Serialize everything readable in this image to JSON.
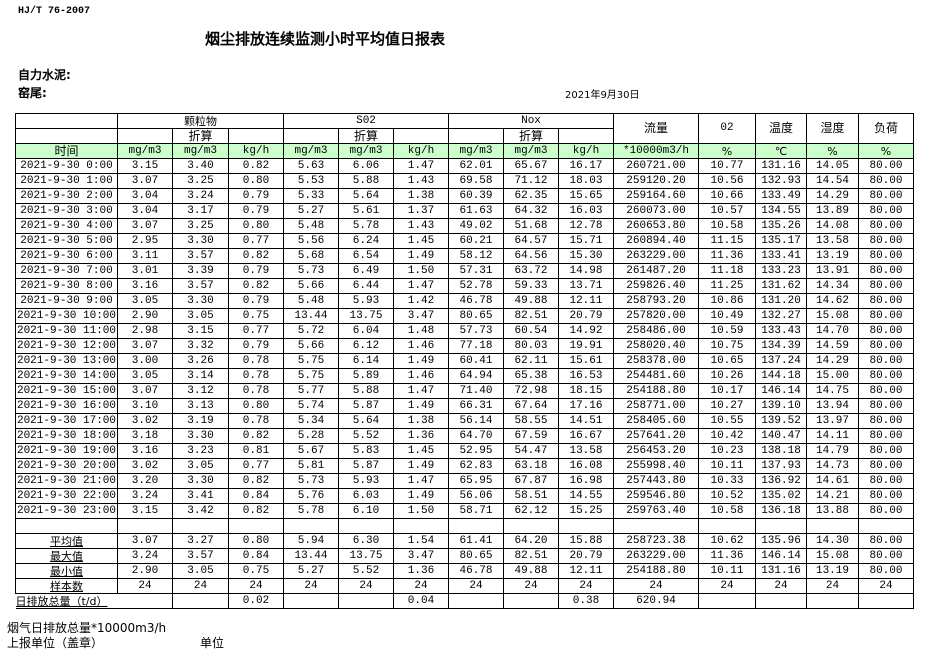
{
  "header": {
    "standard": "HJ/T  76-2007",
    "title": "烟尘排放连续监测小时平均值日报表",
    "company": "自力水泥:",
    "kiln": "窑尾:",
    "date": "2021年9月30日"
  },
  "table": {
    "groups": {
      "particles": "颗粒物",
      "so2": "S02",
      "nox": "Nox",
      "flow": "流量",
      "o2": "02",
      "temp": "温度",
      "humidity": "湿度",
      "load": "负荷"
    },
    "converted": "折算",
    "time_header": "时间",
    "units": [
      "mg/m3",
      "mg/m3",
      "kg/h",
      "mg/m3",
      "mg/m3",
      "kg/h",
      "mg/m3",
      "mg/m3",
      "kg/h",
      "*10000m3/h",
      "%",
      "℃",
      "%",
      "%"
    ],
    "rows": [
      [
        "2021-9-30 0:00",
        "3.15",
        "3.40",
        "0.82",
        "5.63",
        "6.06",
        "1.47",
        "62.01",
        "65.67",
        "16.17",
        "260721.00",
        "10.77",
        "131.16",
        "14.05",
        "80.00"
      ],
      [
        "2021-9-30 1:00",
        "3.07",
        "3.25",
        "0.80",
        "5.53",
        "5.88",
        "1.43",
        "69.58",
        "71.12",
        "18.03",
        "259120.20",
        "10.56",
        "132.93",
        "14.54",
        "80.00"
      ],
      [
        "2021-9-30 2:00",
        "3.04",
        "3.24",
        "0.79",
        "5.33",
        "5.64",
        "1.38",
        "60.39",
        "62.35",
        "15.65",
        "259164.60",
        "10.66",
        "133.49",
        "14.29",
        "80.00"
      ],
      [
        "2021-9-30 3:00",
        "3.04",
        "3.17",
        "0.79",
        "5.27",
        "5.61",
        "1.37",
        "61.63",
        "64.32",
        "16.03",
        "260073.00",
        "10.57",
        "134.55",
        "13.89",
        "80.00"
      ],
      [
        "2021-9-30 4:00",
        "3.07",
        "3.25",
        "0.80",
        "5.48",
        "5.78",
        "1.43",
        "49.02",
        "51.68",
        "12.78",
        "260653.80",
        "10.58",
        "135.26",
        "14.08",
        "80.00"
      ],
      [
        "2021-9-30 5:00",
        "2.95",
        "3.30",
        "0.77",
        "5.56",
        "6.24",
        "1.45",
        "60.21",
        "64.57",
        "15.71",
        "260894.40",
        "11.15",
        "135.17",
        "13.58",
        "80.00"
      ],
      [
        "2021-9-30 6:00",
        "3.11",
        "3.57",
        "0.82",
        "5.68",
        "6.54",
        "1.49",
        "58.12",
        "64.56",
        "15.30",
        "263229.00",
        "11.36",
        "133.41",
        "13.19",
        "80.00"
      ],
      [
        "2021-9-30 7:00",
        "3.01",
        "3.39",
        "0.79",
        "5.73",
        "6.49",
        "1.50",
        "57.31",
        "63.72",
        "14.98",
        "261487.20",
        "11.18",
        "133.23",
        "13.91",
        "80.00"
      ],
      [
        "2021-9-30 8:00",
        "3.16",
        "3.57",
        "0.82",
        "5.66",
        "6.44",
        "1.47",
        "52.78",
        "59.33",
        "13.71",
        "259826.40",
        "11.25",
        "131.62",
        "14.34",
        "80.00"
      ],
      [
        "2021-9-30 9:00",
        "3.05",
        "3.30",
        "0.79",
        "5.48",
        "5.93",
        "1.42",
        "46.78",
        "49.88",
        "12.11",
        "258793.20",
        "10.86",
        "131.20",
        "14.62",
        "80.00"
      ],
      [
        "2021-9-30 10:00",
        "2.90",
        "3.05",
        "0.75",
        "13.44",
        "13.75",
        "3.47",
        "80.65",
        "82.51",
        "20.79",
        "257820.00",
        "10.49",
        "132.27",
        "15.08",
        "80.00"
      ],
      [
        "2021-9-30 11:00",
        "2.98",
        "3.15",
        "0.77",
        "5.72",
        "6.04",
        "1.48",
        "57.73",
        "60.54",
        "14.92",
        "258486.00",
        "10.59",
        "133.43",
        "14.70",
        "80.00"
      ],
      [
        "2021-9-30 12:00",
        "3.07",
        "3.32",
        "0.79",
        "5.66",
        "6.12",
        "1.46",
        "77.18",
        "80.03",
        "19.91",
        "258020.40",
        "10.75",
        "134.39",
        "14.59",
        "80.00"
      ],
      [
        "2021-9-30 13:00",
        "3.00",
        "3.26",
        "0.78",
        "5.75",
        "6.14",
        "1.49",
        "60.41",
        "62.11",
        "15.61",
        "258378.00",
        "10.65",
        "137.24",
        "14.29",
        "80.00"
      ],
      [
        "2021-9-30 14:00",
        "3.05",
        "3.14",
        "0.78",
        "5.75",
        "5.89",
        "1.46",
        "64.94",
        "65.38",
        "16.53",
        "254481.60",
        "10.26",
        "144.18",
        "15.00",
        "80.00"
      ],
      [
        "2021-9-30 15:00",
        "3.07",
        "3.12",
        "0.78",
        "5.77",
        "5.88",
        "1.47",
        "71.40",
        "72.98",
        "18.15",
        "254188.80",
        "10.17",
        "146.14",
        "14.75",
        "80.00"
      ],
      [
        "2021-9-30 16:00",
        "3.10",
        "3.13",
        "0.80",
        "5.74",
        "5.87",
        "1.49",
        "66.31",
        "67.64",
        "17.16",
        "258771.00",
        "10.27",
        "139.10",
        "13.94",
        "80.00"
      ],
      [
        "2021-9-30 17:00",
        "3.02",
        "3.19",
        "0.78",
        "5.34",
        "5.64",
        "1.38",
        "56.14",
        "58.55",
        "14.51",
        "258405.60",
        "10.55",
        "139.52",
        "13.97",
        "80.00"
      ],
      [
        "2021-9-30 18:00",
        "3.18",
        "3.30",
        "0.82",
        "5.28",
        "5.52",
        "1.36",
        "64.70",
        "67.59",
        "16.67",
        "257641.20",
        "10.42",
        "140.47",
        "14.11",
        "80.00"
      ],
      [
        "2021-9-30 19:00",
        "3.16",
        "3.23",
        "0.81",
        "5.67",
        "5.83",
        "1.45",
        "52.95",
        "54.47",
        "13.58",
        "256453.20",
        "10.23",
        "138.18",
        "14.79",
        "80.00"
      ],
      [
        "2021-9-30 20:00",
        "3.02",
        "3.05",
        "0.77",
        "5.81",
        "5.87",
        "1.49",
        "62.83",
        "63.18",
        "16.08",
        "255998.40",
        "10.11",
        "137.93",
        "14.73",
        "80.00"
      ],
      [
        "2021-9-30 21:00",
        "3.20",
        "3.30",
        "0.82",
        "5.73",
        "5.93",
        "1.47",
        "65.95",
        "67.87",
        "16.98",
        "257443.80",
        "10.33",
        "136.92",
        "14.61",
        "80.00"
      ],
      [
        "2021-9-30 22:00",
        "3.24",
        "3.41",
        "0.84",
        "5.76",
        "6.03",
        "1.49",
        "56.06",
        "58.51",
        "14.55",
        "259546.80",
        "10.52",
        "135.02",
        "14.21",
        "80.00"
      ],
      [
        "2021-9-30 23:00",
        "3.15",
        "3.42",
        "0.82",
        "5.78",
        "6.10",
        "1.50",
        "58.71",
        "62.12",
        "15.25",
        "259763.40",
        "10.58",
        "136.18",
        "13.88",
        "80.00"
      ]
    ],
    "summary": [
      [
        "平均值",
        "3.07",
        "3.27",
        "0.80",
        "5.94",
        "6.30",
        "1.54",
        "61.41",
        "64.20",
        "15.88",
        "258723.38",
        "10.62",
        "135.96",
        "14.30",
        "80.00"
      ],
      [
        "最大值",
        "3.24",
        "3.57",
        "0.84",
        "13.44",
        "13.75",
        "3.47",
        "80.65",
        "82.51",
        "20.79",
        "263229.00",
        "11.36",
        "146.14",
        "15.08",
        "80.00"
      ],
      [
        "最小值",
        "2.90",
        "3.05",
        "0.75",
        "5.27",
        "5.52",
        "1.36",
        "46.78",
        "49.88",
        "12.11",
        "254188.80",
        "10.11",
        "131.16",
        "13.19",
        "80.00"
      ],
      [
        "样本数",
        "24",
        "24",
        "24",
        "24",
        "24",
        "24",
        "24",
        "24",
        "24",
        "24",
        "24",
        "24",
        "24",
        "24"
      ]
    ],
    "daily_total": {
      "label": "日排放总量（t/d）",
      "particles_kgh": "0.02",
      "so2_kgh": "0.04",
      "nox_kgh": "0.38",
      "flow": "620.94"
    }
  },
  "footer": {
    "flue_gas_total": "烟气日排放总量*10000m3/h",
    "reporting_unit": "上报单位（盖章）",
    "unit": "单位"
  }
}
